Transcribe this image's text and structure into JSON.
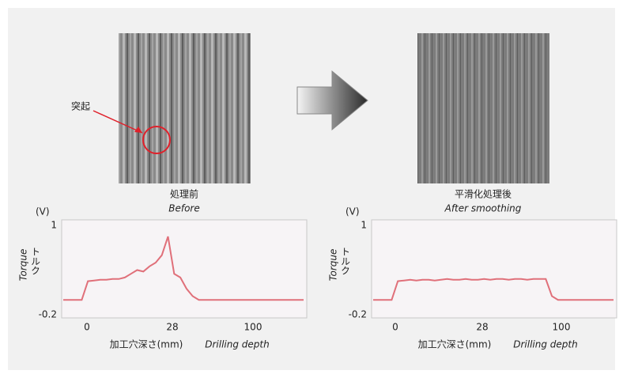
{
  "images": [
    {
      "caption_ja": "処理前",
      "caption_en": "Before",
      "annotation": "突起"
    },
    {
      "caption_ja": "平滑化処理後",
      "caption_en": "After smoothing"
    }
  ],
  "chart_data": [
    {
      "type": "line",
      "y_unit": "(V)",
      "y_label_en": "Torque",
      "y_label_ja": "トルク",
      "x_label_ja": "加工穴深さ(mm)",
      "x_label_en": "Drilling depth",
      "xticks": [
        0,
        28,
        100
      ],
      "ylim": [
        -0.2,
        1
      ],
      "yticks": [
        1,
        -0.2
      ],
      "series": [
        {
          "color": "#e0707a",
          "values": [
            0,
            0,
            0,
            0,
            0.25,
            0.26,
            0.27,
            0.27,
            0.28,
            0.28,
            0.3,
            0.35,
            0.4,
            0.38,
            0.45,
            0.5,
            0.6,
            0.85,
            0.35,
            0.3,
            0.15,
            0.05,
            0,
            0,
            0,
            0,
            0,
            0,
            0,
            0,
            0,
            0,
            0,
            0,
            0,
            0,
            0,
            0,
            0,
            0
          ]
        }
      ]
    },
    {
      "type": "line",
      "y_unit": "(V)",
      "y_label_en": "Torque",
      "y_label_ja": "トルク",
      "x_label_ja": "加工穴深さ(mm)",
      "x_label_en": "Drilling depth",
      "xticks": [
        0,
        28,
        100
      ],
      "ylim": [
        -0.2,
        1
      ],
      "yticks": [
        1,
        -0.2
      ],
      "series": [
        {
          "color": "#e0707a",
          "values": [
            0,
            0,
            0,
            0,
            0.25,
            0.26,
            0.27,
            0.26,
            0.27,
            0.27,
            0.26,
            0.27,
            0.28,
            0.27,
            0.27,
            0.28,
            0.27,
            0.27,
            0.28,
            0.27,
            0.28,
            0.28,
            0.27,
            0.28,
            0.28,
            0.27,
            0.28,
            0.28,
            0.28,
            0.05,
            0,
            0,
            0,
            0,
            0,
            0,
            0,
            0,
            0,
            0
          ]
        }
      ]
    }
  ]
}
